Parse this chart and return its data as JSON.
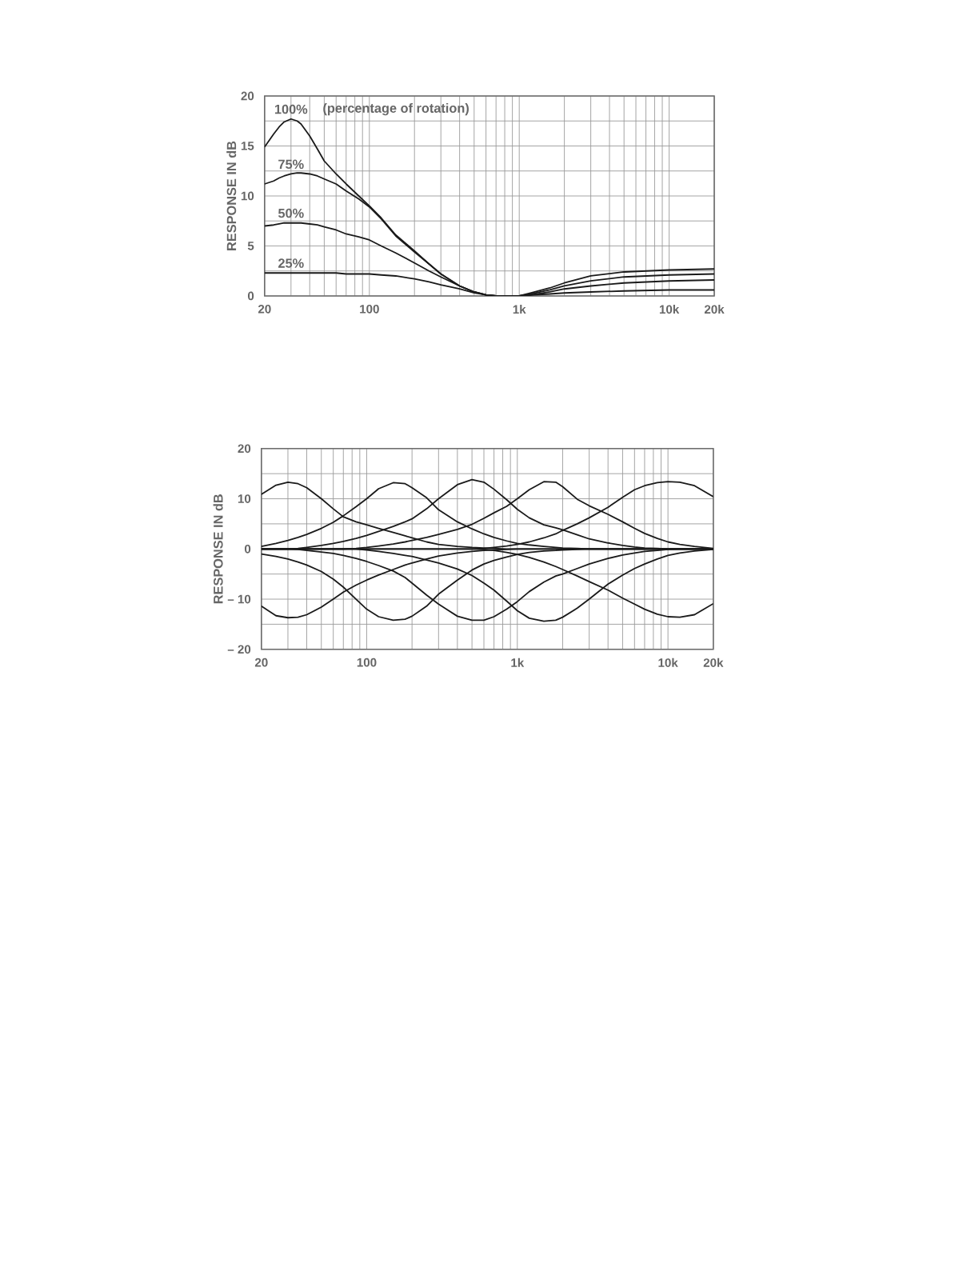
{
  "chart_data": [
    {
      "type": "line",
      "ylabel": "RESPONSE IN dB",
      "log": "x",
      "grid": true,
      "line_style": "solid",
      "annotations": [
        "(percentage of rotation)"
      ],
      "xlim": [
        20,
        20000
      ],
      "ylim": [
        0,
        20
      ],
      "xticks": [
        20,
        {
          "value": 30,
          "label": null
        },
        {
          "value": 40,
          "label": null
        },
        {
          "value": 50,
          "label": null
        },
        {
          "value": 60,
          "label": null
        },
        {
          "value": 70,
          "label": null
        },
        {
          "value": 80,
          "label": null
        },
        {
          "value": 90,
          "label": null
        },
        100,
        {
          "value": 200,
          "label": null
        },
        {
          "value": 300,
          "label": null
        },
        {
          "value": 400,
          "label": null
        },
        {
          "value": 500,
          "label": null
        },
        {
          "value": 600,
          "label": null
        },
        {
          "value": 700,
          "label": null
        },
        {
          "value": 800,
          "label": null
        },
        {
          "value": 900,
          "label": null
        },
        {
          "value": 1000,
          "label": "1k"
        },
        {
          "value": 2000,
          "label": null
        },
        {
          "value": 3000,
          "label": null
        },
        {
          "value": 4000,
          "label": null
        },
        {
          "value": 5000,
          "label": null
        },
        {
          "value": 6000,
          "label": null
        },
        {
          "value": 7000,
          "label": null
        },
        {
          "value": 8000,
          "label": null
        },
        {
          "value": 9000,
          "label": null
        },
        {
          "value": 10000,
          "label": "10k"
        },
        {
          "value": 20000,
          "label": "20k"
        }
      ],
      "yticks": [
        0,
        {
          "value": 2.5,
          "label": null
        },
        5,
        {
          "value": 7.5,
          "label": null
        },
        10,
        {
          "value": 12.5,
          "label": null
        },
        15,
        {
          "value": 17.5,
          "label": null
        },
        20
      ],
      "x": [
        20,
        23,
        25,
        27,
        30,
        33,
        35,
        40,
        45,
        50,
        60,
        70,
        85,
        100,
        120,
        150,
        200,
        250,
        300,
        400,
        500,
        600,
        700,
        1000,
        1200,
        1600,
        2000,
        3000,
        5000,
        10000,
        20000
      ],
      "series": [
        {
          "name": "100%",
          "color": "#1a1a1a",
          "values": [
            14.9,
            16.2,
            16.9,
            17.4,
            17.7,
            17.5,
            17.2,
            16.0,
            14.7,
            13.5,
            12.2,
            11.2,
            10.0,
            9.0,
            7.8,
            6.1,
            4.5,
            3.2,
            2.2,
            1.0,
            0.4,
            0.1,
            0,
            0,
            0.3,
            0.8,
            1.3,
            2.0,
            2.4,
            2.6,
            2.7
          ]
        },
        {
          "name": "75%",
          "color": "#1a1a1a",
          "values": [
            11.2,
            11.5,
            11.8,
            12.0,
            12.2,
            12.3,
            12.3,
            12.2,
            12.0,
            11.7,
            11.2,
            10.5,
            9.7,
            8.9,
            7.7,
            6.0,
            4.4,
            3.2,
            2.2,
            1.0,
            0.4,
            0.1,
            0,
            0,
            0.2,
            0.6,
            1.0,
            1.5,
            1.9,
            2.1,
            2.2
          ]
        },
        {
          "name": "50%",
          "color": "#1a1a1a",
          "values": [
            7.0,
            7.1,
            7.2,
            7.3,
            7.3,
            7.3,
            7.3,
            7.2,
            7.1,
            6.9,
            6.6,
            6.2,
            5.9,
            5.6,
            5.0,
            4.3,
            3.3,
            2.5,
            1.9,
            1.0,
            0.4,
            0.1,
            0,
            0,
            0.1,
            0.4,
            0.7,
            1.0,
            1.3,
            1.5,
            1.6
          ]
        },
        {
          "name": "25%",
          "color": "#1a1a1a",
          "values": [
            2.3,
            2.3,
            2.3,
            2.3,
            2.3,
            2.3,
            2.3,
            2.3,
            2.3,
            2.3,
            2.3,
            2.2,
            2.2,
            2.2,
            2.1,
            2.0,
            1.7,
            1.4,
            1.1,
            0.7,
            0.3,
            0.1,
            0,
            0,
            0.1,
            0.2,
            0.3,
            0.4,
            0.5,
            0.6,
            0.6
          ]
        }
      ]
    },
    {
      "type": "line",
      "ylabel": "RESPONSE IN dB",
      "log": "x",
      "grid": true,
      "line_style": "solid",
      "xlim": [
        20,
        20000
      ],
      "ylim": [
        -20,
        20
      ],
      "xticks": [
        20,
        {
          "value": 30,
          "label": null
        },
        {
          "value": 40,
          "label": null
        },
        {
          "value": 50,
          "label": null
        },
        {
          "value": 60,
          "label": null
        },
        {
          "value": 70,
          "label": null
        },
        {
          "value": 80,
          "label": null
        },
        {
          "value": 90,
          "label": null
        },
        100,
        {
          "value": 200,
          "label": null
        },
        {
          "value": 300,
          "label": null
        },
        {
          "value": 400,
          "label": null
        },
        {
          "value": 500,
          "label": null
        },
        {
          "value": 600,
          "label": null
        },
        {
          "value": 700,
          "label": null
        },
        {
          "value": 800,
          "label": null
        },
        {
          "value": 900,
          "label": null
        },
        {
          "value": 1000,
          "label": "1k"
        },
        {
          "value": 2000,
          "label": null
        },
        {
          "value": 3000,
          "label": null
        },
        {
          "value": 4000,
          "label": null
        },
        {
          "value": 5000,
          "label": null
        },
        {
          "value": 6000,
          "label": null
        },
        {
          "value": 7000,
          "label": null
        },
        {
          "value": 8000,
          "label": null
        },
        {
          "value": 9000,
          "label": null
        },
        {
          "value": 10000,
          "label": "10k"
        },
        {
          "value": 20000,
          "label": "20k"
        }
      ],
      "yticks": [
        {
          "value": -20,
          "label": "– 20"
        },
        {
          "value": -15,
          "label": null
        },
        {
          "value": -10,
          "label": "– 10"
        },
        {
          "value": -5,
          "label": null
        },
        0,
        {
          "value": 5,
          "label": null
        },
        10,
        {
          "value": 15,
          "label": null
        },
        20
      ],
      "x": [
        20,
        25,
        30,
        35,
        40,
        50,
        60,
        70,
        85,
        100,
        120,
        150,
        180,
        200,
        250,
        300,
        400,
        500,
        600,
        700,
        850,
        1000,
        1200,
        1500,
        1800,
        2000,
        2500,
        3000,
        4000,
        5000,
        6000,
        7000,
        8500,
        10000,
        12000,
        15000,
        20000
      ],
      "series": [
        {
          "color": "#1a1a1a",
          "values": [
            10.9,
            12.7,
            13.3,
            13.0,
            12.2,
            10.0,
            8.0,
            6.4,
            5.4,
            4.8,
            4.1,
            3.3,
            2.6,
            2.2,
            1.4,
            0.9,
            0.5,
            0.3,
            0.2,
            0.1,
            0,
            0,
            0,
            0,
            0,
            0,
            0,
            0,
            0,
            0,
            0,
            0,
            0,
            0,
            0,
            0,
            0
          ]
        },
        {
          "color": "#1a1a1a",
          "values": [
            -11.4,
            -13.3,
            -13.7,
            -13.6,
            -13.1,
            -11.6,
            -10.0,
            -8.6,
            -7.2,
            -6.2,
            -5.2,
            -4.1,
            -3.2,
            -2.8,
            -2.0,
            -1.4,
            -0.8,
            -0.5,
            -0.3,
            -0.2,
            -0.1,
            0,
            0,
            0,
            0,
            0,
            0,
            0,
            0,
            0,
            0,
            0,
            0,
            0,
            0,
            0,
            0
          ]
        },
        {
          "color": "#1a1a1a",
          "values": [
            0.5,
            1.1,
            1.7,
            2.3,
            2.9,
            4.1,
            5.3,
            6.6,
            8.4,
            10.0,
            12.0,
            13.2,
            13.0,
            12.2,
            10.2,
            7.8,
            5.4,
            4.0,
            3.0,
            2.3,
            1.6,
            1.1,
            0.8,
            0.5,
            0.3,
            0.2,
            0.1,
            0,
            0,
            0,
            0,
            0,
            0,
            0,
            0,
            0,
            0
          ]
        },
        {
          "color": "#1a1a1a",
          "values": [
            -1.0,
            -1.5,
            -2.0,
            -2.6,
            -3.2,
            -4.5,
            -6.0,
            -7.6,
            -10.0,
            -12.0,
            -13.5,
            -14.2,
            -14.0,
            -13.4,
            -11.4,
            -9.0,
            -6.2,
            -4.2,
            -3.0,
            -2.3,
            -1.6,
            -1.1,
            -0.7,
            -0.4,
            -0.3,
            -0.2,
            -0.1,
            0,
            0,
            0,
            0,
            0,
            0,
            0,
            0,
            0,
            0
          ]
        },
        {
          "color": "#1a1a1a",
          "values": [
            0,
            0,
            0,
            0.1,
            0.3,
            0.7,
            1.1,
            1.5,
            2.1,
            2.7,
            3.5,
            4.5,
            5.4,
            6.0,
            8.0,
            10.0,
            12.8,
            13.8,
            13.3,
            11.9,
            9.8,
            7.9,
            6.2,
            4.8,
            4.2,
            3.8,
            2.8,
            2.0,
            1.2,
            0.7,
            0.4,
            0.2,
            0.1,
            0,
            0,
            0,
            0
          ]
        },
        {
          "color": "#1a1a1a",
          "values": [
            0,
            0,
            0,
            -0.1,
            -0.3,
            -0.6,
            -0.9,
            -1.3,
            -1.9,
            -2.5,
            -3.3,
            -4.4,
            -5.7,
            -6.8,
            -9.2,
            -11.0,
            -13.4,
            -14.2,
            -14.2,
            -13.5,
            -12.0,
            -10.5,
            -8.5,
            -6.6,
            -5.4,
            -5.0,
            -3.9,
            -3.0,
            -1.9,
            -1.2,
            -0.8,
            -0.5,
            -0.3,
            -0.1,
            0,
            0,
            0
          ]
        },
        {
          "color": "#1a1a1a",
          "values": [
            0,
            0,
            0,
            0,
            0,
            0,
            0,
            0,
            0.1,
            0.3,
            0.6,
            1.0,
            1.4,
            1.7,
            2.3,
            2.9,
            3.9,
            4.9,
            6.1,
            7.2,
            8.5,
            10.0,
            11.8,
            13.4,
            13.3,
            12.4,
            9.9,
            8.6,
            6.9,
            5.4,
            4.1,
            3.1,
            2.1,
            1.4,
            0.9,
            0.5,
            0.1
          ]
        },
        {
          "color": "#1a1a1a",
          "values": [
            0,
            0,
            0,
            0,
            0,
            0,
            0,
            0,
            0,
            -0.2,
            -0.5,
            -0.9,
            -1.3,
            -1.5,
            -2.2,
            -2.8,
            -4.0,
            -5.3,
            -6.8,
            -8.2,
            -10.4,
            -12.3,
            -13.8,
            -14.4,
            -14.2,
            -13.6,
            -11.8,
            -10.0,
            -7.0,
            -5.2,
            -3.9,
            -3.0,
            -2.0,
            -1.3,
            -0.8,
            -0.4,
            -0.1
          ]
        },
        {
          "color": "#1a1a1a",
          "values": [
            0,
            0,
            0,
            0,
            0,
            0,
            0,
            0,
            0,
            0,
            0,
            0,
            0,
            0,
            0,
            0,
            0,
            0,
            0.1,
            0.3,
            0.6,
            0.9,
            1.4,
            2.2,
            3.0,
            3.7,
            5.0,
            6.2,
            8.3,
            10.3,
            11.8,
            12.6,
            13.2,
            13.4,
            13.3,
            12.6,
            10.4
          ]
        },
        {
          "color": "#1a1a1a",
          "values": [
            0,
            0,
            0,
            0,
            0,
            0,
            0,
            0,
            0,
            0,
            0,
            0,
            0,
            0,
            0,
            0,
            0,
            0,
            -0.1,
            -0.3,
            -0.7,
            -1.1,
            -1.7,
            -2.6,
            -3.5,
            -4.1,
            -5.4,
            -6.5,
            -8.2,
            -9.8,
            -11.0,
            -12.0,
            -13.0,
            -13.5,
            -13.6,
            -13.1,
            -10.9
          ]
        }
      ]
    }
  ]
}
